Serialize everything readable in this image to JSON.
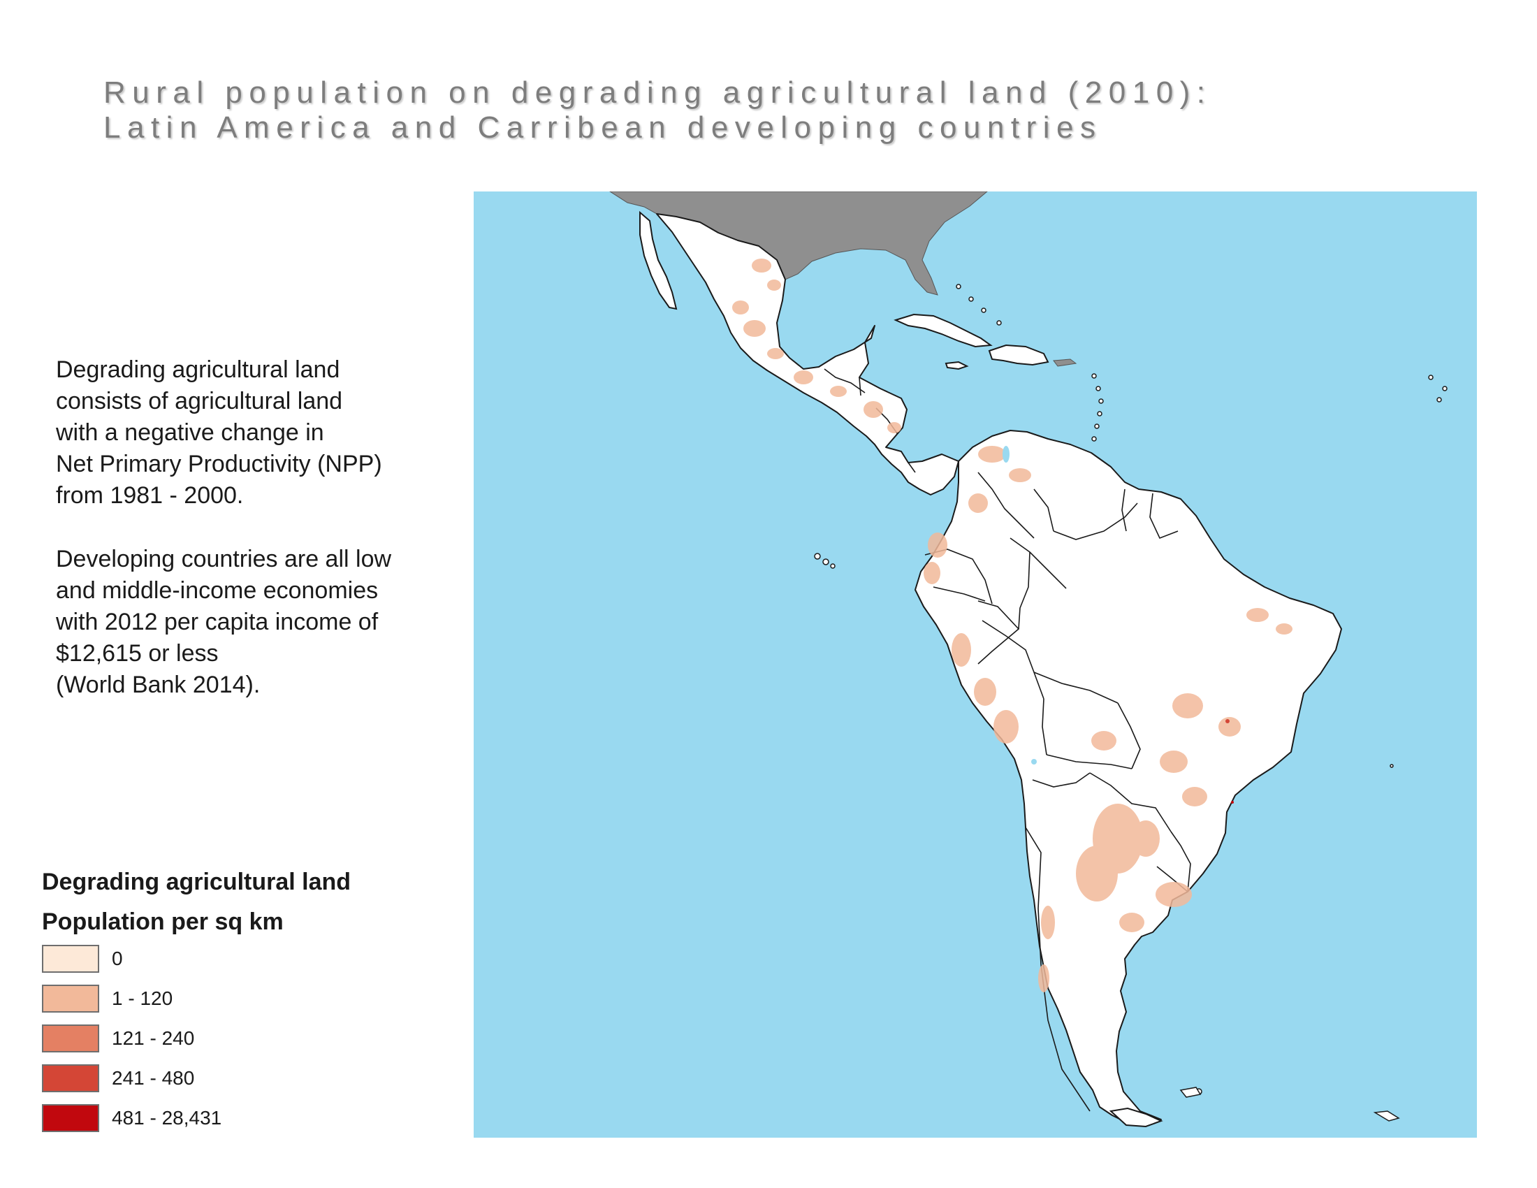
{
  "title": {
    "line1": "Rural population on degrading agricultural land (2010):",
    "line2": "Latin America and Carribean developing countries"
  },
  "description": {
    "para1": [
      "Degrading agricultural land",
      "consists of agricultural land",
      "with a negative change in",
      "Net Primary Productivity (NPP)",
      "from 1981 - 2000."
    ],
    "para2": [
      "Developing countries are all low",
      "and middle-income economies",
      "with 2012 per capita income of",
      "$12,615 or less",
      "(World Bank 2014)."
    ]
  },
  "legend": {
    "title": "Degrading agricultural land",
    "subtitle": "Population per sq km",
    "classes": [
      {
        "label": "0",
        "color": "#fde9d8"
      },
      {
        "label": "1 - 120",
        "color": "#f2b99a"
      },
      {
        "label": "121 - 240",
        "color": "#e48063"
      },
      {
        "label": "241 - 480",
        "color": "#d44636"
      },
      {
        "label": "481 - 28,431",
        "color": "#c1080e"
      }
    ]
  },
  "colors": {
    "ocean": "#99d9f0",
    "land": "#ffffff",
    "non_study_land": "#8f8f8f",
    "borders": "#1a1a1a"
  }
}
